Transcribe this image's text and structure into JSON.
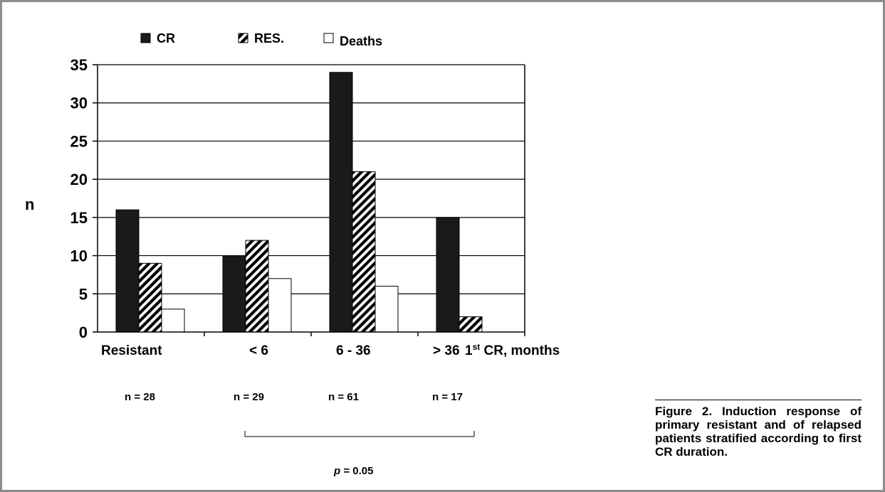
{
  "chart_data": {
    "type": "bar",
    "categories": [
      "Resistant",
      "< 6",
      "6 - 36",
      "> 36"
    ],
    "series": [
      {
        "name": "CR",
        "values": [
          16,
          10,
          34,
          15
        ],
        "pattern": "solid",
        "color": "#1a1a1a"
      },
      {
        "name": "RES.",
        "values": [
          9,
          12,
          21,
          2
        ],
        "pattern": "hatched",
        "color": "#1a1a1a"
      },
      {
        "name": "Deaths",
        "values": [
          3,
          7,
          6,
          0
        ],
        "pattern": "open",
        "color": "#ffffff"
      }
    ],
    "ylabel": "n",
    "xlabel": "1st CR, months",
    "ylim": [
      0,
      35
    ],
    "yticks": [
      0,
      5,
      10,
      15,
      20,
      25,
      30,
      35
    ],
    "grid": true,
    "legend_position": "top",
    "group_counts": [
      "n = 28",
      "n = 29",
      "n = 61",
      "n = 17"
    ],
    "significance": {
      "label": "p = 0.05",
      "p_symbol": "p",
      "p_rest": " = 0.05",
      "span": [
        "< 6",
        "> 36"
      ]
    }
  },
  "caption": {
    "text": "Figure 2. Induction response of primary resistant and of relapsed patients stratified according to first CR duration."
  }
}
